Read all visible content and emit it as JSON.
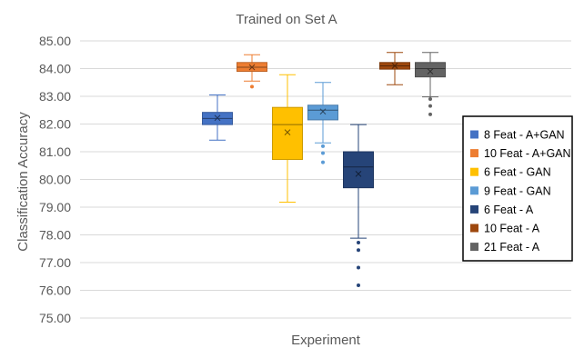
{
  "chart_data": {
    "type": "box",
    "title": "Trained on Set A",
    "xlabel": "Experiment",
    "ylabel": "Classification Accuracy",
    "ylim": [
      75,
      85
    ],
    "ytick_step": 1,
    "yticks": [
      "75.00",
      "76.00",
      "77.00",
      "78.00",
      "79.00",
      "80.00",
      "81.00",
      "82.00",
      "83.00",
      "84.00",
      "85.00"
    ],
    "grid": true,
    "legend_position": "right",
    "series": [
      {
        "name": "8 Feat - A+GAN",
        "color": "#4472C4",
        "min": 81.42,
        "q1": 81.98,
        "median": 82.2,
        "q3": 82.42,
        "max": 83.05,
        "mean": 82.22,
        "outliers": []
      },
      {
        "name": "10 Feat - A+GAN",
        "color": "#ED7D31",
        "min": 83.55,
        "q1": 83.9,
        "median": 84.05,
        "q3": 84.22,
        "max": 84.5,
        "mean": 84.05,
        "outliers": [
          83.35
        ]
      },
      {
        "name": "6 Feat - GAN",
        "color": "#FFC000",
        "min": 79.18,
        "q1": 80.72,
        "median": 81.98,
        "q3": 82.6,
        "max": 83.78,
        "mean": 81.7,
        "outliers": []
      },
      {
        "name": "9 Feat - GAN",
        "color": "#5B9BD5",
        "min": 81.32,
        "q1": 82.15,
        "median": 82.5,
        "q3": 82.68,
        "max": 83.5,
        "mean": 82.45,
        "outliers": [
          81.2,
          80.95,
          80.62
        ]
      },
      {
        "name": "6 Feat - A",
        "color": "#264478",
        "min": 77.88,
        "q1": 79.7,
        "median": 80.45,
        "q3": 81.0,
        "max": 81.98,
        "mean": 80.2,
        "outliers": [
          77.72,
          77.45,
          76.82,
          76.18
        ]
      },
      {
        "name": "10 Feat - A",
        "color": "#9E480E",
        "min": 83.42,
        "q1": 83.98,
        "median": 84.1,
        "q3": 84.22,
        "max": 84.58,
        "mean": 84.1,
        "outliers": []
      },
      {
        "name": "21 Feat - A",
        "color": "#636363",
        "min": 82.98,
        "q1": 83.7,
        "median": 84.0,
        "q3": 84.22,
        "max": 84.58,
        "mean": 83.9,
        "outliers": [
          82.9,
          82.65,
          82.35
        ]
      }
    ]
  }
}
